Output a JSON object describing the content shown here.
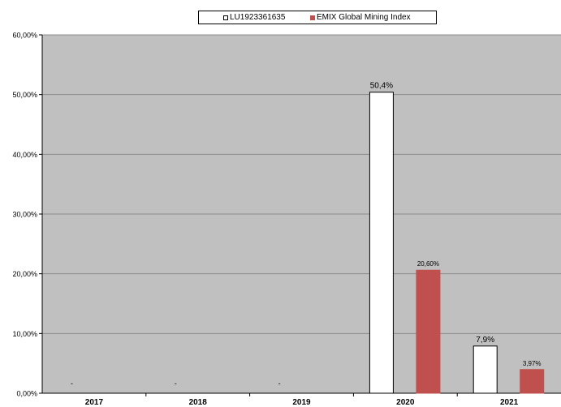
{
  "chart_data": {
    "type": "bar",
    "categories": [
      "2017",
      "2018",
      "2019",
      "2020",
      "2021"
    ],
    "series": [
      {
        "name": "LU1923361635",
        "values": [
          null,
          null,
          null,
          50.4,
          7.9
        ],
        "labels": [
          "-",
          "-",
          "-",
          "50,4%",
          "7,9%"
        ],
        "color": "#ffffff",
        "stroke": "#000000"
      },
      {
        "name": "EMIX Global Mining Index",
        "values": [
          null,
          null,
          null,
          20.6,
          3.97
        ],
        "labels": [
          "",
          "",
          "",
          "20,60%",
          "3,97%"
        ],
        "color": "#c0504d",
        "stroke": "#c0504d"
      }
    ],
    "ylim": [
      0,
      60
    ],
    "yticks": [
      0,
      10,
      20,
      30,
      40,
      50,
      60
    ],
    "ytick_labels": [
      "0,00%",
      "10,00%",
      "20,00%",
      "30,00%",
      "40,00%",
      "50,00%",
      "60,00%"
    ],
    "grid": true,
    "plot_background": "#c0c0c0",
    "legend_position": "top-center"
  }
}
